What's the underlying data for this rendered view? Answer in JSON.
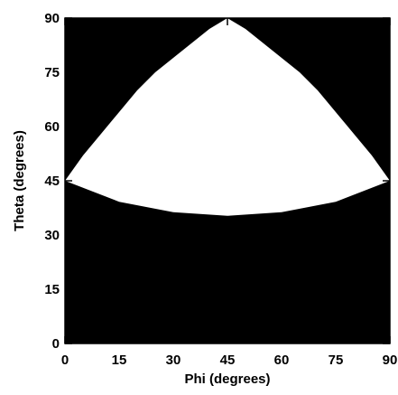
{
  "chart_data": {
    "type": "heatmap",
    "title": "",
    "xlabel": "Phi (degrees)",
    "ylabel": "Theta (degrees)",
    "xlim": [
      0,
      90
    ],
    "ylim": [
      0,
      90
    ],
    "xticks": [
      0,
      15,
      30,
      45,
      60,
      75,
      90
    ],
    "yticks": [
      0,
      15,
      30,
      45,
      60,
      75,
      90
    ],
    "xtick_labels": [
      "0",
      "15",
      "30",
      "45",
      "60",
      "75",
      "90"
    ],
    "ytick_labels": [
      "0",
      "15",
      "30",
      "45",
      "60",
      "75",
      "90"
    ],
    "minor_tick_step": 3,
    "grid": false,
    "colors": {
      "background": "#000000",
      "region": "#ffffff",
      "axis": "#000000"
    },
    "region_boundary": {
      "apex": [
        45,
        90
      ],
      "left_edge": [
        [
          0,
          45
        ],
        [
          5,
          52
        ],
        [
          10,
          58
        ],
        [
          15,
          64
        ],
        [
          20,
          70
        ],
        [
          25,
          75
        ],
        [
          30,
          79
        ],
        [
          35,
          83
        ],
        [
          40,
          87
        ],
        [
          45,
          90
        ]
      ],
      "right_edge": [
        [
          45,
          90
        ],
        [
          50,
          87
        ],
        [
          55,
          83
        ],
        [
          60,
          79
        ],
        [
          65,
          75
        ],
        [
          70,
          70
        ],
        [
          75,
          64
        ],
        [
          80,
          58
        ],
        [
          85,
          52
        ],
        [
          90,
          45
        ]
      ],
      "bottom_edge": [
        [
          0,
          45
        ],
        [
          15,
          39.2
        ],
        [
          30,
          36.3
        ],
        [
          45,
          35.3
        ],
        [
          60,
          36.3
        ],
        [
          75,
          39.2
        ],
        [
          90,
          45
        ]
      ]
    }
  }
}
